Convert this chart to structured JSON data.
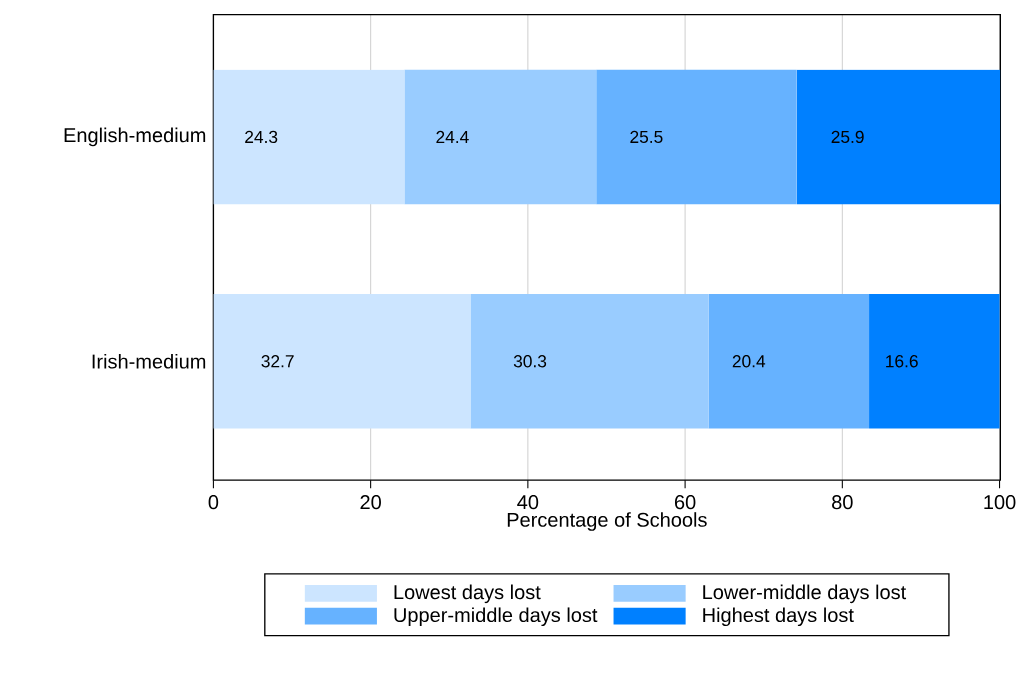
{
  "chart_data": {
    "type": "bar",
    "orientation": "horizontal",
    "stacked": true,
    "xlabel": "Percentage of Schools",
    "categories": [
      "English-medium",
      "Irish-medium"
    ],
    "series": [
      {
        "name": "Lowest days lost",
        "color": "#cce5ff",
        "values": [
          24.3,
          32.7
        ]
      },
      {
        "name": "Lower-middle days lost",
        "color": "#99ccff",
        "values": [
          24.4,
          30.3
        ]
      },
      {
        "name": "Upper-middle days lost",
        "color": "#66b2ff",
        "values": [
          25.5,
          20.4
        ]
      },
      {
        "name": "Highest days lost",
        "color": "#0080ff",
        "values": [
          25.9,
          16.6
        ]
      }
    ],
    "xlim": [
      0,
      100.1
    ],
    "xticks": [
      0,
      20,
      40,
      60,
      80,
      100
    ],
    "grid": "x",
    "legend": "bottom",
    "data_labels": true
  }
}
